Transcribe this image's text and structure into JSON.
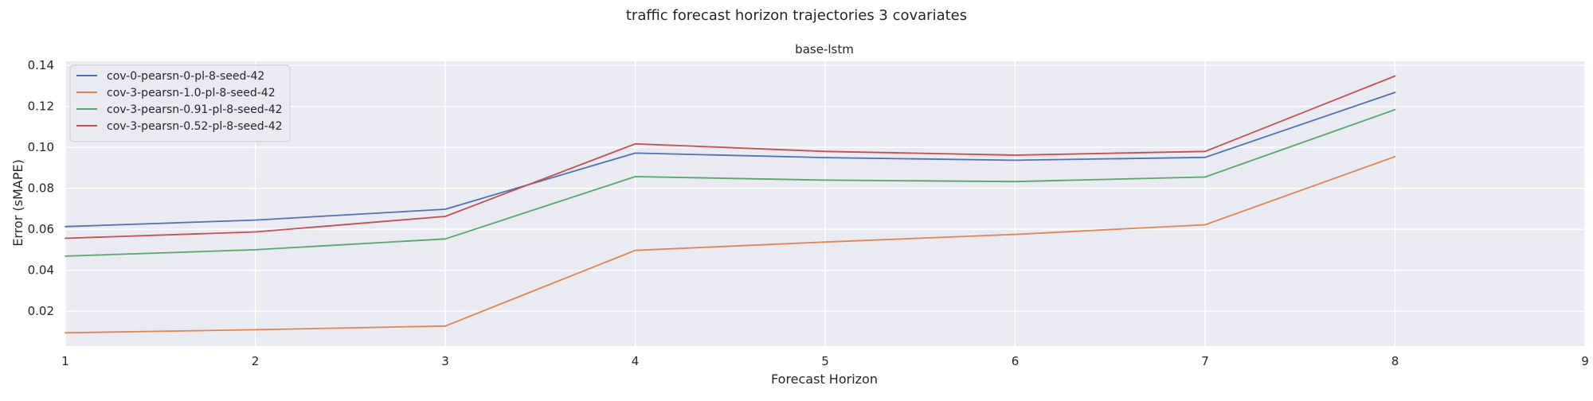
{
  "figure": {
    "suptitle": "traffic forecast horizon trajectories 3 covariates"
  },
  "chart_data": {
    "type": "line",
    "title": "base-lstm",
    "xlabel": "Forecast Horizon",
    "ylabel": "Error (sMAPE)",
    "xlim": [
      1,
      9
    ],
    "ylim": [
      0.003,
      0.142
    ],
    "xticks": [
      1,
      2,
      3,
      4,
      5,
      6,
      7,
      8,
      9
    ],
    "yticks": [
      0.02,
      0.04,
      0.06,
      0.08,
      0.1,
      0.12,
      0.14
    ],
    "ytick_labels": [
      "0.02",
      "0.04",
      "0.06",
      "0.08",
      "0.10",
      "0.12",
      "0.14"
    ],
    "grid": true,
    "legend_position": "upper-left",
    "x": [
      1,
      2,
      3,
      4,
      5,
      6,
      7,
      8
    ],
    "series": [
      {
        "name": "cov-0-pearsn-0-pl-8-seed-42",
        "color": "#4C72B0",
        "values": [
          0.0613,
          0.0645,
          0.0698,
          0.0972,
          0.095,
          0.0937,
          0.0951,
          0.1268
        ]
      },
      {
        "name": "cov-3-pearsn-1.0-pl-8-seed-42",
        "color": "#DD8452",
        "values": [
          0.0095,
          0.011,
          0.0128,
          0.0497,
          0.0538,
          0.0575,
          0.0622,
          0.0955
        ]
      },
      {
        "name": "cov-3-pearsn-0.91-pl-8-seed-42",
        "color": "#55A868",
        "values": [
          0.0469,
          0.05,
          0.0553,
          0.0857,
          0.084,
          0.0833,
          0.0855,
          0.1184
        ]
      },
      {
        "name": "cov-3-pearsn-0.52-pl-8-seed-42",
        "color": "#C44E52",
        "values": [
          0.0556,
          0.0587,
          0.0663,
          0.1017,
          0.098,
          0.0962,
          0.098,
          0.1348
        ]
      }
    ]
  }
}
